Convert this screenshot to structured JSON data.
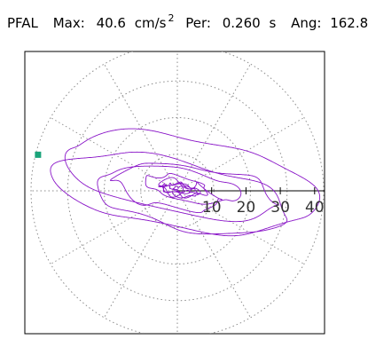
{
  "header": {
    "station": "PFAL",
    "max_label": "Max:",
    "max_value": "40.6",
    "max_unit": "cm/s",
    "max_unit_power": "2",
    "per_label": "Per:",
    "per_value": "0.260",
    "per_unit": "s",
    "ang_label": "Ang:",
    "ang_value": "162.8"
  },
  "chart_data": {
    "type": "line",
    "coordinate_system": "polar",
    "radial_ticks": [
      10,
      20,
      30,
      40
    ],
    "radial_tick_labels": [
      "10",
      "20",
      "30",
      "40"
    ],
    "radial_max": 40.6,
    "grid": true,
    "grid_style": "dotted",
    "orbit_color": "#8a16c8",
    "marker_color": "#1aa37a",
    "marker": {
      "x": -40.6,
      "y": 10.5
    }
  }
}
